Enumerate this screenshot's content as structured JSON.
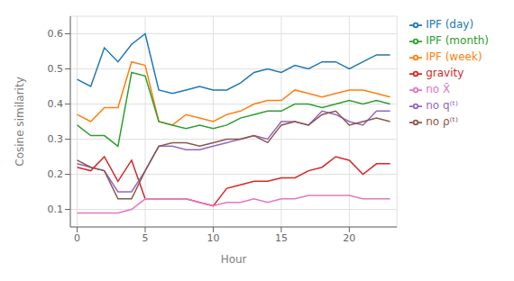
{
  "chart_data": {
    "type": "line",
    "xlabel": "Hour",
    "ylabel": "Cosine similarity",
    "x": [
      0,
      1,
      2,
      3,
      4,
      5,
      6,
      7,
      8,
      9,
      10,
      11,
      12,
      13,
      14,
      15,
      16,
      17,
      18,
      19,
      20,
      21,
      22,
      23
    ],
    "series": [
      {
        "name": "IPF (day)",
        "color": "#1f77b4",
        "values": [
          0.47,
          0.45,
          0.56,
          0.52,
          0.57,
          0.6,
          0.44,
          0.43,
          0.44,
          0.45,
          0.44,
          0.44,
          0.46,
          0.49,
          0.5,
          0.49,
          0.51,
          0.5,
          0.52,
          0.52,
          0.5,
          0.52,
          0.54,
          0.54
        ]
      },
      {
        "name": "IPF (week)",
        "color": "#ff7f0e",
        "values": [
          0.37,
          0.35,
          0.39,
          0.39,
          0.52,
          0.51,
          0.35,
          0.34,
          0.37,
          0.36,
          0.35,
          0.37,
          0.38,
          0.4,
          0.41,
          0.41,
          0.44,
          0.43,
          0.42,
          0.43,
          0.44,
          0.44,
          0.43,
          0.42
        ]
      },
      {
        "name": "IPF (month)",
        "color": "#2ca02c",
        "values": [
          0.34,
          0.31,
          0.31,
          0.28,
          0.49,
          0.48,
          0.35,
          0.34,
          0.33,
          0.34,
          0.33,
          0.34,
          0.36,
          0.37,
          0.38,
          0.38,
          0.4,
          0.4,
          0.39,
          0.4,
          0.41,
          0.4,
          0.41,
          0.4
        ]
      },
      {
        "name": "gravity",
        "color": "#d62728",
        "values": [
          0.22,
          0.21,
          0.25,
          0.18,
          0.24,
          0.13,
          0.13,
          0.13,
          0.13,
          0.12,
          0.11,
          0.16,
          0.17,
          0.18,
          0.18,
          0.19,
          0.19,
          0.21,
          0.22,
          0.25,
          0.24,
          0.2,
          0.23,
          0.23
        ]
      },
      {
        "name": "no q⁽ᵗ⁾",
        "color": "#9467bd",
        "values": [
          0.23,
          0.22,
          0.21,
          0.15,
          0.15,
          0.21,
          0.28,
          0.28,
          0.27,
          0.27,
          0.28,
          0.29,
          0.3,
          0.31,
          0.3,
          0.35,
          0.35,
          0.34,
          0.38,
          0.37,
          0.35,
          0.34,
          0.38,
          0.38
        ]
      },
      {
        "name": "no ρ⁽ᵗ⁾",
        "color": "#8c564b",
        "values": [
          0.24,
          0.22,
          0.21,
          0.13,
          0.13,
          0.21,
          0.28,
          0.29,
          0.29,
          0.28,
          0.29,
          0.3,
          0.3,
          0.31,
          0.29,
          0.34,
          0.35,
          0.34,
          0.37,
          0.38,
          0.34,
          0.35,
          0.36,
          0.35
        ]
      },
      {
        "name": "no X̄",
        "color": "#e377c2",
        "values": [
          0.09,
          0.09,
          0.09,
          0.09,
          0.1,
          0.13,
          0.13,
          0.13,
          0.13,
          0.12,
          0.11,
          0.12,
          0.12,
          0.13,
          0.12,
          0.13,
          0.13,
          0.14,
          0.14,
          0.14,
          0.14,
          0.13,
          0.13,
          0.13
        ]
      }
    ],
    "xlim": [
      -0.5,
      23.5
    ],
    "xticks": [
      0,
      5,
      10,
      15,
      20
    ],
    "ylim": [
      0.05,
      0.65
    ],
    "yticks": [
      0.1,
      0.2,
      0.3,
      0.4,
      0.5,
      0.6
    ],
    "grid": true,
    "legend": "right"
  }
}
